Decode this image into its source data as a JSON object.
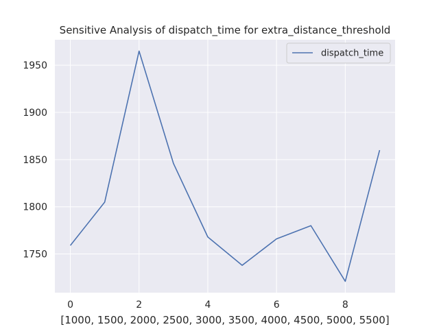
{
  "chart_data": {
    "type": "line",
    "title": "Sensitive Analysis of dispatch_time for extra_distance_threshold",
    "xlabel": "[1000, 1500, 2000, 2500, 3000, 3500, 4000, 4500, 5000, 5500]",
    "ylabel": "",
    "x": [
      0,
      1,
      2,
      3,
      4,
      5,
      6,
      7,
      8,
      9
    ],
    "series": [
      {
        "name": "dispatch_time",
        "values": [
          1759,
          1805,
          1965,
          1846,
          1768,
          1738,
          1766,
          1780,
          1721,
          1860
        ],
        "color": "#4c72b0"
      }
    ],
    "xlim": [
      -0.45,
      9.45
    ],
    "ylim": [
      1709,
      1977
    ],
    "xticks": [
      0,
      2,
      4,
      6,
      8
    ],
    "yticks": [
      1750,
      1800,
      1850,
      1900,
      1950
    ],
    "grid": true,
    "legend": "top-right",
    "background": "#eaeaf2",
    "grid_color": "#ffffff"
  }
}
